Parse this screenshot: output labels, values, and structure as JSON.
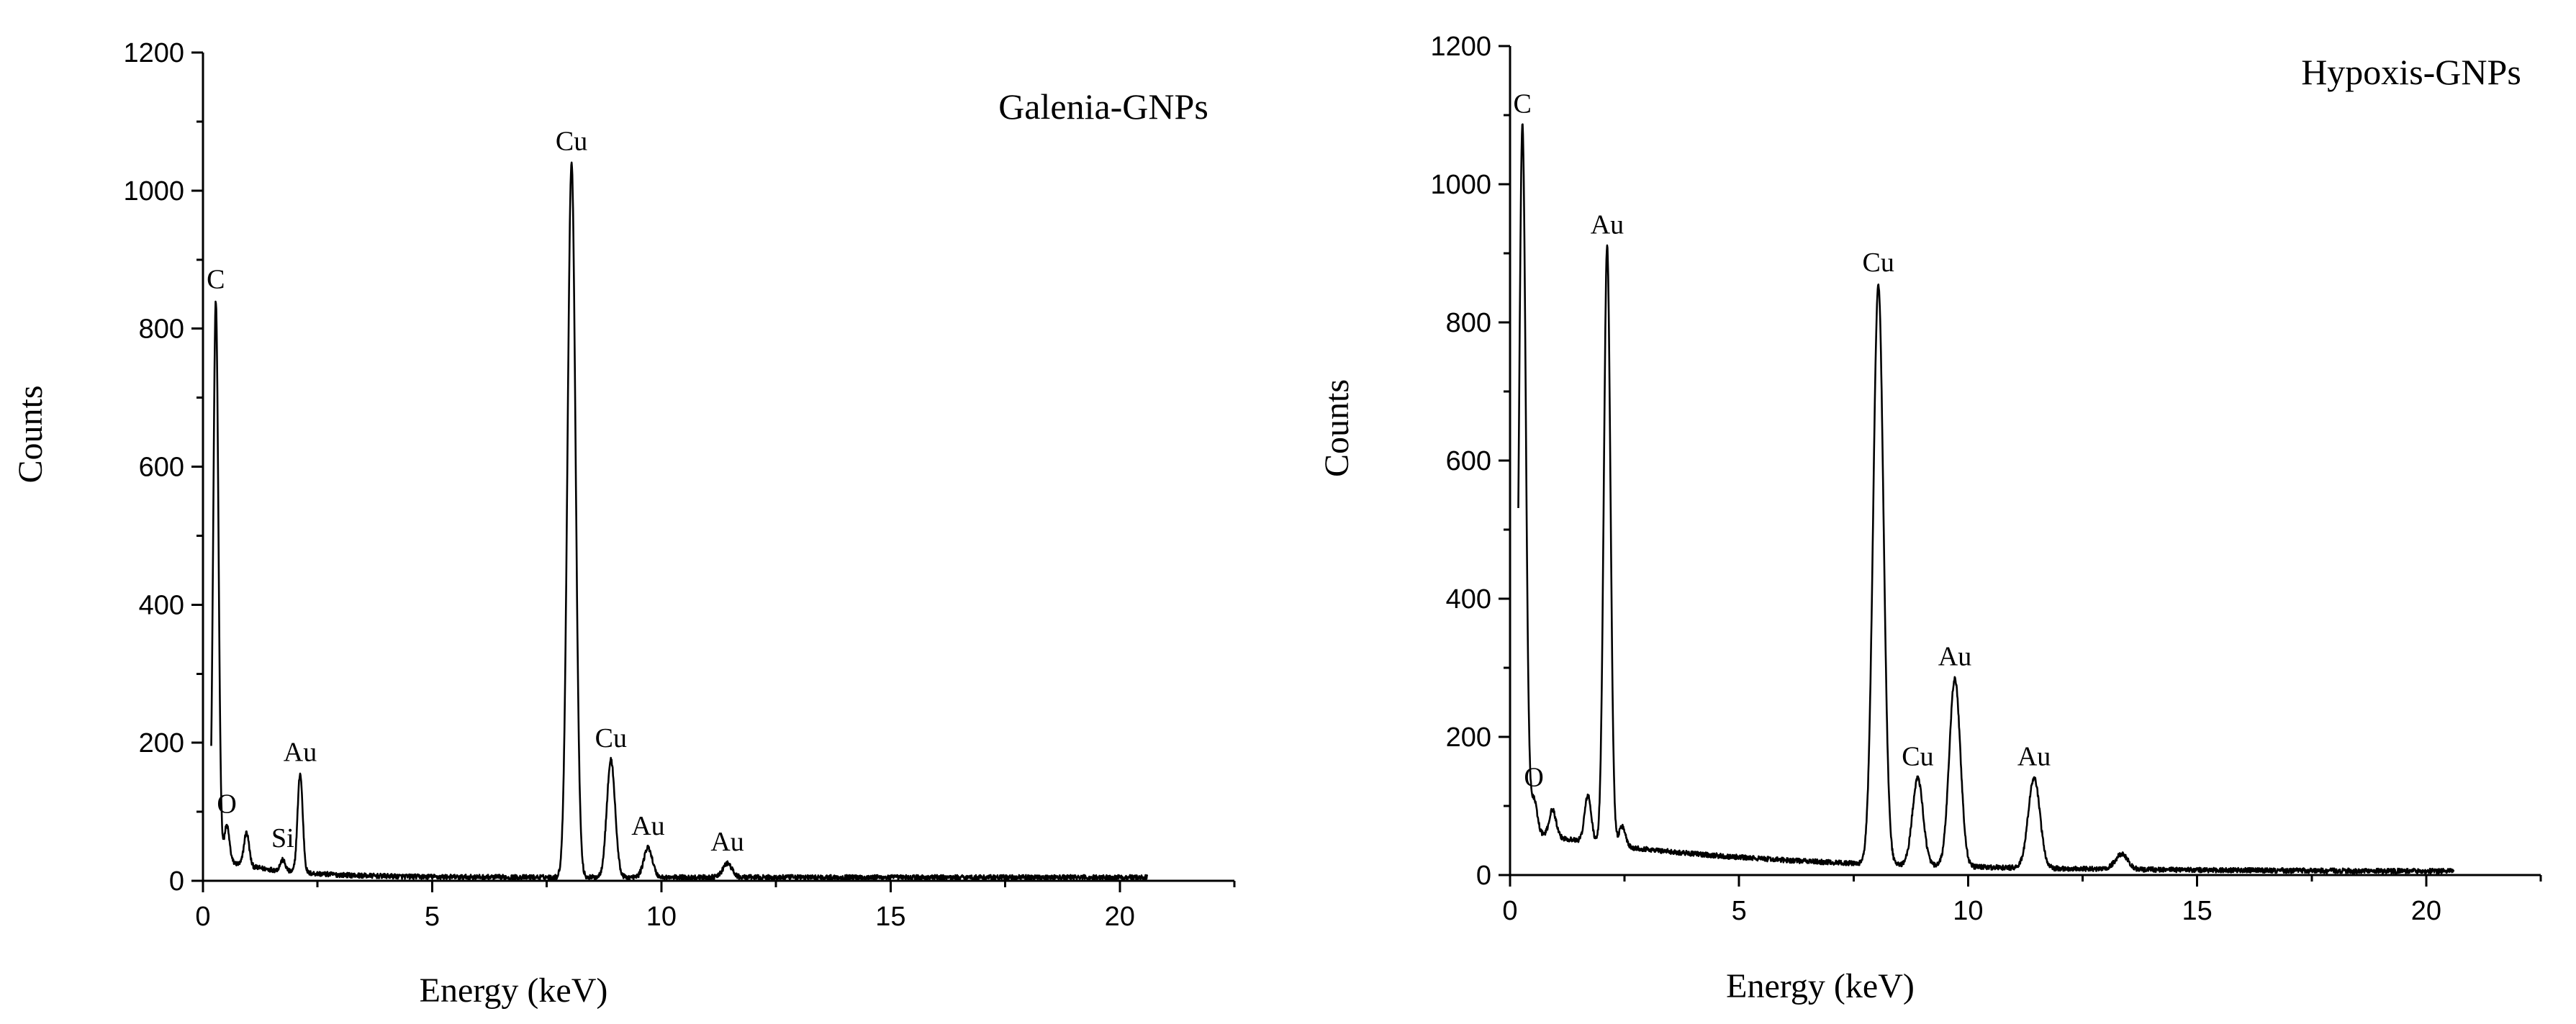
{
  "chart_data": [
    {
      "type": "line",
      "title": "Galenia-GNPs",
      "xlabel": "Energy (keV)",
      "ylabel": "Counts",
      "xlim": [
        0,
        22.5
      ],
      "ylim": [
        0,
        1200
      ],
      "xticks": [
        0,
        5,
        10,
        15,
        20
      ],
      "yticks": [
        0,
        200,
        400,
        600,
        800,
        1000,
        1200
      ],
      "grid": false,
      "peaks": [
        {
          "label": "C",
          "x": 0.28,
          "y": 840
        },
        {
          "label": "O",
          "x": 0.52,
          "y": 80
        },
        {
          "label": "Si",
          "x": 1.74,
          "y": 30
        },
        {
          "label": "Au",
          "x": 2.12,
          "y": 155
        },
        {
          "label": "Cu",
          "x": 8.04,
          "y": 1040
        },
        {
          "label": "Cu",
          "x": 8.9,
          "y": 175
        },
        {
          "label": "Au",
          "x": 9.71,
          "y": 48
        },
        {
          "label": "Au",
          "x": 11.44,
          "y": 25
        }
      ],
      "extra_peaks": [
        {
          "x": 0.95,
          "y": 70
        }
      ],
      "background": {
        "start": 30,
        "decay": 0.75,
        "floor": 5,
        "end_x": 20.6
      },
      "peak_width": 0.07
    },
    {
      "type": "line",
      "title": "Hypoxis-GNPs",
      "xlabel": "Energy (keV)",
      "ylabel": "Counts",
      "xlim": [
        0,
        22.5
      ],
      "ylim": [
        0,
        1200
      ],
      "xticks": [
        0,
        5,
        10,
        15,
        20
      ],
      "yticks": [
        0,
        200,
        400,
        600,
        800,
        1000,
        1200
      ],
      "grid": false,
      "peaks": [
        {
          "label": "C",
          "x": 0.27,
          "y": 1085
        },
        {
          "label": "O",
          "x": 0.52,
          "y": 110
        },
        {
          "label": "Au",
          "x": 2.12,
          "y": 910
        },
        {
          "label": "Cu",
          "x": 8.04,
          "y": 855
        },
        {
          "label": "Cu",
          "x": 8.9,
          "y": 140
        },
        {
          "label": "Au",
          "x": 9.71,
          "y": 285
        },
        {
          "label": "Au",
          "x": 11.44,
          "y": 140
        }
      ],
      "extra_peaks": [
        {
          "x": 0.93,
          "y": 95
        },
        {
          "x": 1.7,
          "y": 115
        },
        {
          "x": 2.45,
          "y": 70
        },
        {
          "x": 13.35,
          "y": 30
        }
      ],
      "background": {
        "start": 60,
        "decay": 0.22,
        "floor": 5,
        "end_x": 20.6
      },
      "peak_width": 0.09
    }
  ]
}
